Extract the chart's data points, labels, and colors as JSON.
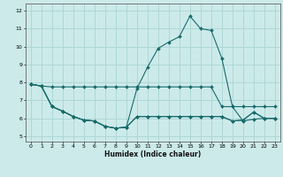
{
  "title": "",
  "xlabel": "Humidex (Indice chaleur)",
  "ylabel": "",
  "bg_color": "#cceaea",
  "grid_color": "#aad4d4",
  "line_color": "#1a6b6b",
  "xlim": [
    -0.5,
    23.5
  ],
  "ylim": [
    4.7,
    12.4
  ],
  "xticks": [
    0,
    1,
    2,
    3,
    4,
    5,
    6,
    7,
    8,
    9,
    10,
    11,
    12,
    13,
    14,
    15,
    16,
    17,
    18,
    19,
    20,
    21,
    22,
    23
  ],
  "yticks": [
    5,
    6,
    7,
    8,
    9,
    10,
    11,
    12
  ],
  "lines": [
    {
      "x": [
        0,
        1,
        2,
        3,
        4,
        5,
        6,
        7,
        8,
        9,
        10,
        11,
        12,
        13,
        14,
        15,
        16,
        17,
        18,
        19,
        20,
        21,
        22,
        23
      ],
      "y": [
        7.9,
        7.8,
        7.75,
        7.75,
        7.75,
        7.75,
        7.75,
        7.75,
        7.75,
        7.75,
        7.75,
        7.75,
        7.75,
        7.75,
        7.75,
        7.75,
        7.75,
        7.75,
        6.65,
        6.65,
        6.65,
        6.65,
        6.65,
        6.65
      ]
    },
    {
      "x": [
        0,
        1,
        2,
        3,
        4,
        5,
        6,
        7,
        8,
        9,
        10,
        11,
        12,
        13,
        14,
        15,
        16,
        17,
        18,
        19,
        20,
        21,
        22,
        23
      ],
      "y": [
        7.9,
        7.8,
        6.65,
        6.4,
        6.1,
        5.9,
        5.85,
        5.55,
        5.45,
        5.5,
        6.1,
        6.1,
        6.1,
        6.1,
        6.1,
        6.1,
        6.1,
        6.1,
        6.1,
        5.85,
        5.9,
        6.35,
        6.0,
        6.0
      ]
    },
    {
      "x": [
        0,
        1,
        2,
        3,
        4,
        5,
        6,
        7,
        8,
        9,
        10,
        11,
        12,
        13,
        14,
        15,
        16,
        17,
        18,
        19,
        20,
        21,
        22,
        23
      ],
      "y": [
        7.9,
        7.8,
        6.65,
        6.4,
        6.1,
        5.9,
        5.85,
        5.55,
        5.45,
        5.5,
        7.65,
        8.85,
        9.9,
        10.25,
        10.55,
        11.7,
        11.0,
        10.9,
        9.35,
        6.65,
        5.85,
        5.95,
        6.0,
        6.0
      ]
    },
    {
      "x": [
        0,
        1,
        2,
        3,
        4,
        5,
        6,
        7,
        8,
        9,
        10,
        11,
        12,
        13,
        14,
        15,
        16,
        17,
        18,
        19,
        20,
        21,
        22,
        23
      ],
      "y": [
        7.9,
        7.8,
        6.65,
        6.4,
        6.1,
        5.9,
        5.85,
        5.55,
        5.45,
        5.5,
        6.1,
        6.1,
        6.1,
        6.1,
        6.1,
        6.1,
        6.1,
        6.1,
        6.1,
        5.85,
        5.9,
        6.35,
        6.0,
        6.0
      ]
    }
  ]
}
